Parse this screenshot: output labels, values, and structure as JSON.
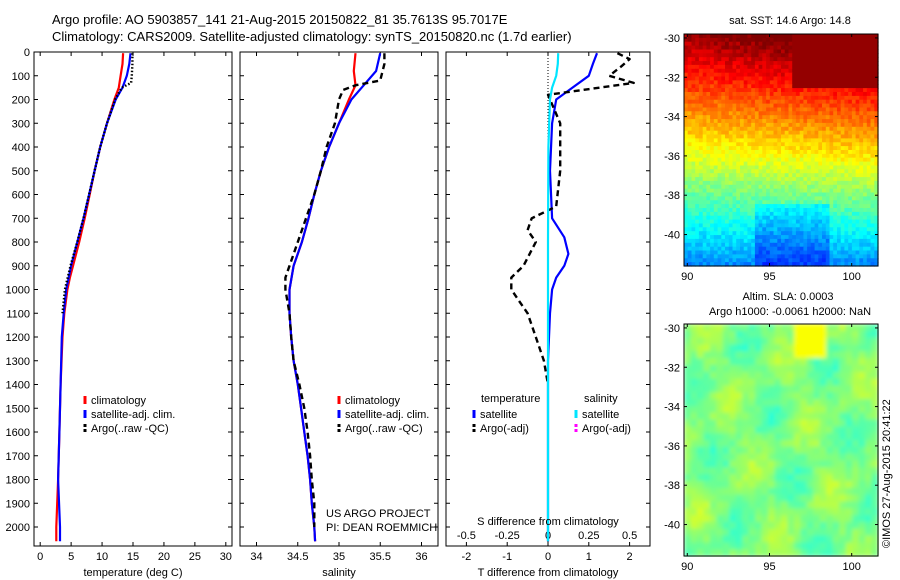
{
  "header": {
    "line1": "Argo profile: AO 5903857_141 21-Aug-2015 20150822_81 35.7613S 95.7017E",
    "line2": "Climatology: CARS2009. Satellite-adjusted climatology: synTS_20150820.nc (1.7d earlier)"
  },
  "panel_temperature": {
    "xlabel": "temperature (deg C)",
    "legend": [
      "climatology",
      "satellite-adj. clim.",
      "Argo(..raw -QC)"
    ]
  },
  "panel_salinity": {
    "xlabel": "salinity",
    "legend": [
      "climatology",
      "satellite-adj. clim.",
      "Argo(..raw -QC)"
    ],
    "note_line1": "US ARGO PROJECT",
    "note_line2": "PI: DEAN ROEMMICH"
  },
  "panel_difference": {
    "xlabel_bottom": "T difference from climatology",
    "xlabel_top": "S difference from climatology",
    "legend_temperature_title": "temperature",
    "legend_salinity_title": "salinity",
    "legend_temperature": [
      "satellite",
      "Argo(-adj)"
    ],
    "legend_salinity": [
      "satellite",
      "Argo(-adj)"
    ]
  },
  "map_sst": {
    "title": "sat. SST: 14.6  Argo: 14.8"
  },
  "map_sla": {
    "title_line1": "Altim. SLA: 0.0003",
    "title_line2": "Argo h1000: -0.0061 h2000: NaN"
  },
  "footer": {
    "credit": "©IMOS 27-Aug-2015 20:41:22"
  },
  "colors": {
    "climatology": "#ff0000",
    "satellite": "#0000ff",
    "argo": "#000000",
    "salinity_satellite": "#00e5ff",
    "salinity_argo": "#ff00ff"
  },
  "chart_data": [
    {
      "type": "line",
      "xlabel": "temperature (deg C)",
      "ylabel": "",
      "xlim": [
        -1,
        31
      ],
      "ylim": [
        2080,
        0
      ],
      "xticks": [
        0,
        5,
        10,
        15,
        20,
        25,
        30
      ],
      "yticks": [
        0,
        100,
        200,
        300,
        400,
        500,
        600,
        700,
        800,
        900,
        1000,
        1100,
        1200,
        1300,
        1400,
        1500,
        1600,
        1700,
        1800,
        1900,
        2000
      ],
      "series": [
        {
          "name": "climatology",
          "color": "#ff0000",
          "style": "solid",
          "y": [
            5,
            50,
            100,
            150,
            200,
            300,
            400,
            500,
            600,
            700,
            800,
            900,
            950,
            1000,
            1100,
            1200,
            1400,
            1600,
            1800,
            2000,
            2060
          ],
          "x": [
            13.4,
            13.3,
            13.0,
            12.7,
            12.0,
            10.8,
            9.7,
            8.8,
            8.0,
            7.2,
            6.3,
            5.3,
            4.8,
            4.4,
            3.9,
            3.6,
            3.3,
            3.1,
            2.9,
            2.6,
            2.6
          ]
        },
        {
          "name": "satellite-adj. clim.",
          "color": "#0000ff",
          "style": "solid",
          "y": [
            5,
            50,
            100,
            150,
            200,
            300,
            400,
            500,
            600,
            700,
            800,
            900,
            950,
            1000,
            1100,
            1200,
            1400,
            1600,
            1800,
            2000,
            2060
          ],
          "x": [
            14.6,
            14.4,
            14.0,
            13.3,
            12.2,
            10.8,
            9.7,
            8.8,
            7.9,
            7.0,
            6.0,
            5.0,
            4.6,
            4.2,
            3.8,
            3.5,
            3.3,
            3.1,
            2.9,
            3.2,
            3.2
          ]
        },
        {
          "name": "Argo(..raw -QC)",
          "color": "#000000",
          "style": "dotted",
          "y": [
            5,
            50,
            100,
            130,
            150,
            200,
            300,
            400,
            500,
            600,
            700,
            800,
            900,
            1000,
            1100
          ],
          "x": [
            14.9,
            14.9,
            14.8,
            14.7,
            13.2,
            12.1,
            10.8,
            9.7,
            8.8,
            7.9,
            7.0,
            6.0,
            4.9,
            4.0,
            3.6
          ]
        }
      ]
    },
    {
      "type": "line",
      "xlabel": "salinity",
      "ylabel": "",
      "xlim": [
        33.8,
        36.2
      ],
      "ylim": [
        2080,
        0
      ],
      "xticks": [
        34,
        34.5,
        35,
        35.5,
        36
      ],
      "series": [
        {
          "name": "climatology",
          "color": "#ff0000",
          "style": "solid",
          "y": [
            5,
            80,
            140,
            200,
            300,
            400,
            500,
            600,
            700,
            800,
            900,
            1000,
            1100,
            1200,
            1300,
            1400,
            1500,
            1600,
            1700,
            1800,
            1900,
            2000,
            2060
          ],
          "x": [
            35.2,
            35.18,
            35.2,
            35.12,
            35.0,
            34.88,
            34.78,
            34.7,
            34.63,
            34.55,
            34.45,
            34.4,
            34.4,
            34.42,
            34.45,
            34.5,
            34.54,
            34.58,
            34.62,
            34.65,
            34.67,
            34.7,
            34.71
          ]
        },
        {
          "name": "satellite-adj. clim.",
          "color": "#0000ff",
          "style": "solid",
          "y": [
            5,
            80,
            140,
            200,
            300,
            400,
            500,
            600,
            700,
            800,
            900,
            1000,
            1100,
            1200,
            1300,
            1400,
            1500,
            1600,
            1700,
            1800,
            1900,
            2000,
            2060
          ],
          "x": [
            35.5,
            35.45,
            35.3,
            35.15,
            35.0,
            34.88,
            34.78,
            34.7,
            34.63,
            34.55,
            34.45,
            34.4,
            34.4,
            34.42,
            34.45,
            34.5,
            34.54,
            34.58,
            34.62,
            34.65,
            34.67,
            34.7,
            34.71
          ]
        },
        {
          "name": "Argo(..raw -QC)",
          "color": "#000000",
          "style": "dashed",
          "y": [
            5,
            50,
            120,
            140,
            160,
            200,
            300,
            400,
            500,
            600,
            700,
            800,
            900,
            950,
            1000,
            1100,
            1200,
            1300,
            1400,
            1500,
            1600,
            1700,
            1800,
            1900,
            2000
          ],
          "x": [
            35.55,
            35.55,
            35.5,
            35.2,
            35.05,
            35.0,
            34.95,
            34.85,
            34.78,
            34.7,
            34.6,
            34.5,
            34.4,
            34.35,
            34.35,
            34.4,
            34.42,
            34.45,
            34.52,
            34.58,
            34.62,
            34.65,
            34.67,
            34.7,
            34.7
          ]
        }
      ]
    },
    {
      "type": "line",
      "xlabel": "T difference from climatology",
      "xlabel_top": "S difference from climatology",
      "xlim": [
        -2.5,
        2.5
      ],
      "xlim_top": [
        -0.625,
        0.625
      ],
      "ylim": [
        2080,
        0
      ],
      "xticks": [
        -2,
        -1,
        0,
        1,
        2
      ],
      "xticks_top": [
        -0.5,
        -0.25,
        0,
        0.25,
        0.5
      ],
      "series": [
        {
          "name": "temperature satellite",
          "color": "#0000ff",
          "style": "solid",
          "y": [
            5,
            50,
            100,
            150,
            200,
            300,
            500,
            700,
            780,
            850,
            900,
            950,
            1000,
            1100,
            1300,
            1600,
            2000,
            2060
          ],
          "x": [
            1.2,
            1.1,
            1.0,
            0.6,
            0.2,
            0.1,
            0.05,
            0.1,
            0.4,
            0.5,
            0.4,
            0.2,
            0.1,
            0.05,
            0.0,
            0.0,
            0.0,
            0.0
          ]
        },
        {
          "name": "temperature Argo(-adj)",
          "color": "#000000",
          "style": "dashed",
          "y": [
            5,
            30,
            60,
            100,
            130,
            180,
            300,
            500,
            650,
            700,
            750,
            800,
            900,
            950,
            1000,
            1050,
            1100,
            1200,
            1300,
            1400
          ],
          "x": [
            1.7,
            2.0,
            1.8,
            1.5,
            2.1,
            0.0,
            0.3,
            0.3,
            0.2,
            -0.4,
            -0.5,
            -0.3,
            -0.6,
            -0.9,
            -0.9,
            -0.7,
            -0.5,
            -0.3,
            -0.1,
            0.0
          ]
        },
        {
          "name": "salinity satellite",
          "color": "#00e5ff",
          "style": "solid",
          "y": [
            5,
            50,
            100,
            150,
            200,
            400,
            800,
            1200,
            1600,
            2000,
            2060
          ],
          "x": [
            0.25,
            0.24,
            0.2,
            0.1,
            0.05,
            0.01,
            0.0,
            0.0,
            0.0,
            0.0,
            0.0
          ]
        },
        {
          "name": "salinity Argo(-adj)",
          "color": "#ff00ff",
          "style": "dashed",
          "y": [],
          "x": []
        }
      ]
    },
    {
      "type": "heatmap",
      "title": "sat. SST: 14.6  Argo: 14.8",
      "xlim": [
        89.8,
        101.6
      ],
      "ylim": [
        -41.6,
        -29.8
      ],
      "xticks": [
        90,
        95,
        100
      ],
      "yticks": [
        -30,
        -32,
        -34,
        -36,
        -38,
        -40
      ],
      "colormap": "jet"
    },
    {
      "type": "heatmap",
      "title": "Altim. SLA: 0.0003",
      "xlim": [
        89.8,
        101.6
      ],
      "ylim": [
        -41.6,
        -29.8
      ],
      "xticks": [
        90,
        95,
        100
      ],
      "yticks": [
        -30,
        -32,
        -34,
        -36,
        -38,
        -40
      ],
      "colormap": "jet"
    }
  ]
}
